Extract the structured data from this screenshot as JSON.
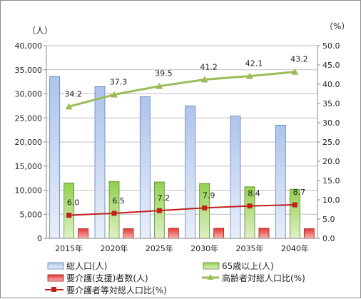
{
  "chart_data": {
    "type": "bar",
    "categories": [
      "2015年",
      "2020年",
      "2025年",
      "2030年",
      "2035年",
      "2040年"
    ],
    "left_unit": "（人）",
    "right_unit": "（%）",
    "ylim_left": [
      0,
      40000
    ],
    "ylim_right": [
      0,
      50
    ],
    "left_ticks": [
      "0",
      "5,000",
      "10,000",
      "15,000",
      "20,000",
      "25,000",
      "30,000",
      "35,000",
      "40,000"
    ],
    "right_ticks": [
      "0.0",
      "5.0",
      "10.0",
      "15.0",
      "20.0",
      "25.0",
      "30.0",
      "35.0",
      "40.0",
      "45.0",
      "50.0"
    ],
    "grid": true,
    "legend_position": "bottom",
    "series": [
      {
        "name": "総人口(人)",
        "kind": "bar",
        "axis": "left",
        "color": "#8eaadb",
        "values": [
          33600,
          31500,
          29400,
          27500,
          25400,
          23500
        ]
      },
      {
        "name": "65歳以上(人)",
        "kind": "bar",
        "axis": "left",
        "color": "#92d050",
        "values": [
          11500,
          11800,
          11700,
          11400,
          10700,
          10200
        ]
      },
      {
        "name": "要介護(支援)者数(人)",
        "kind": "bar",
        "axis": "left",
        "color": "#e03030",
        "values": [
          2000,
          2000,
          2100,
          2100,
          2100,
          2000
        ]
      },
      {
        "name": "高齢者対総人口比(%)",
        "kind": "line",
        "axis": "right",
        "color": "#9bbb59",
        "marker": "triangle",
        "values": [
          34.2,
          37.3,
          39.5,
          41.2,
          42.1,
          43.2
        ],
        "labels": [
          "34.2",
          "37.3",
          "39.5",
          "41.2",
          "42.1",
          "43.2"
        ]
      },
      {
        "name": "要介護者等対総人口比(%)",
        "kind": "line",
        "axis": "right",
        "color": "#c0201e",
        "marker": "square",
        "values": [
          6.0,
          6.5,
          7.2,
          7.9,
          8.4,
          8.7
        ],
        "labels": [
          "6.0",
          "6.5",
          "7.2",
          "7.9",
          "8.4",
          "8.7"
        ]
      }
    ]
  }
}
